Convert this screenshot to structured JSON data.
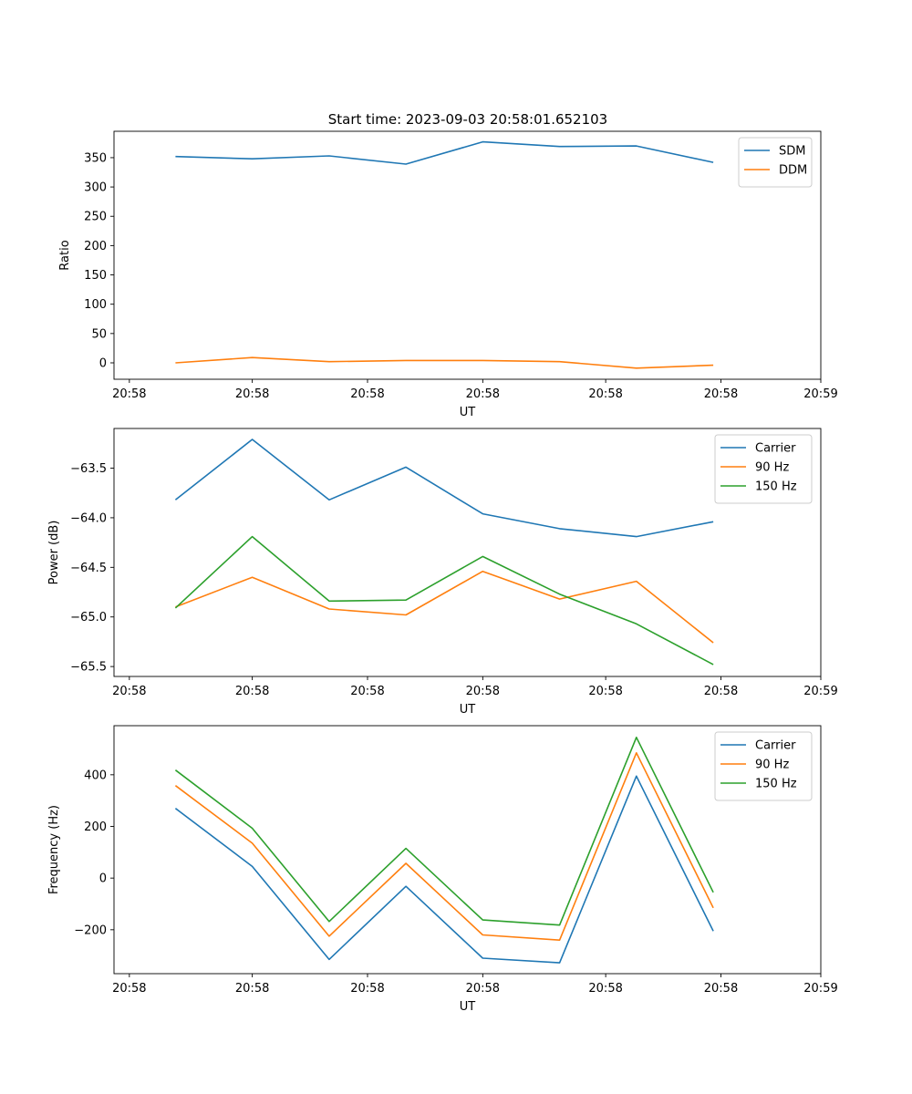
{
  "figure": {
    "title": "Start time: 2023-09-03 20:58:01.652103"
  },
  "colors": {
    "blue": "#1f77b4",
    "orange": "#ff7f0e",
    "green": "#2ca02c"
  },
  "chart_data": [
    {
      "type": "line",
      "title": "Start time: 2023-09-03 20:58:01.652103",
      "xlabel": "UT",
      "ylabel": "Ratio",
      "x": [
        1,
        2,
        3,
        4,
        5,
        6,
        7,
        8
      ],
      "xlim": [
        0.2,
        9.4
      ],
      "xticks": [
        0.4,
        2.0,
        3.5,
        5.0,
        6.6,
        8.1,
        9.4
      ],
      "xtick_labels": [
        "20:58",
        "20:58",
        "20:58",
        "20:58",
        "20:58",
        "20:58",
        "20:59"
      ],
      "ylim": [
        -28,
        395
      ],
      "yticks": [
        0,
        50,
        100,
        150,
        200,
        250,
        300,
        350
      ],
      "ytick_labels": [
        "0",
        "50",
        "100",
        "150",
        "200",
        "250",
        "300",
        "350"
      ],
      "legend": "top-right",
      "series": [
        {
          "name": "SDM",
          "color": "#1f77b4",
          "values": [
            352,
            348,
            353,
            339,
            377,
            369,
            370,
            342
          ]
        },
        {
          "name": "DDM",
          "color": "#ff7f0e",
          "values": [
            0,
            9,
            2,
            4,
            4,
            2,
            -9,
            -4
          ]
        }
      ]
    },
    {
      "type": "line",
      "title": "",
      "xlabel": "UT",
      "ylabel": "Power (dB)",
      "x": [
        1,
        2,
        3,
        4,
        5,
        6,
        7,
        8
      ],
      "xlim": [
        0.2,
        9.4
      ],
      "xticks": [
        0.4,
        2.0,
        3.5,
        5.0,
        6.6,
        8.1,
        9.4
      ],
      "xtick_labels": [
        "20:58",
        "20:58",
        "20:58",
        "20:58",
        "20:58",
        "20:58",
        "20:59"
      ],
      "ylim": [
        -65.6,
        -63.1
      ],
      "yticks": [
        -65.5,
        -65.0,
        -64.5,
        -64.0,
        -63.5
      ],
      "ytick_labels": [
        "−65.5",
        "−65.0",
        "−64.5",
        "−64.0",
        "−63.5"
      ],
      "legend": "top-right",
      "series": [
        {
          "name": "Carrier",
          "color": "#1f77b4",
          "values": [
            -63.82,
            -63.21,
            -63.82,
            -63.49,
            -63.96,
            -64.11,
            -64.19,
            -64.04
          ]
        },
        {
          "name": "90 Hz",
          "color": "#ff7f0e",
          "values": [
            -64.9,
            -64.6,
            -64.92,
            -64.98,
            -64.54,
            -64.82,
            -64.64,
            -65.26
          ]
        },
        {
          "name": "150 Hz",
          "color": "#2ca02c",
          "values": [
            -64.91,
            -64.19,
            -64.84,
            -64.83,
            -64.39,
            -64.77,
            -65.07,
            -65.48
          ]
        }
      ]
    },
    {
      "type": "line",
      "title": "",
      "xlabel": "UT",
      "ylabel": "Frequency (Hz)",
      "x": [
        1,
        2,
        3,
        4,
        5,
        6,
        7,
        8
      ],
      "xlim": [
        0.2,
        9.4
      ],
      "xticks": [
        0.4,
        2.0,
        3.5,
        5.0,
        6.6,
        8.1,
        9.4
      ],
      "xtick_labels": [
        "20:58",
        "20:58",
        "20:58",
        "20:58",
        "20:58",
        "20:58",
        "20:59"
      ],
      "ylim": [
        -370,
        590
      ],
      "yticks": [
        -200,
        0,
        200,
        400
      ],
      "ytick_labels": [
        "−200",
        "0",
        "200",
        "400"
      ],
      "legend": "top-right",
      "series": [
        {
          "name": "Carrier",
          "color": "#1f77b4",
          "values": [
            270,
            45,
            -315,
            -32,
            -310,
            -328,
            395,
            -205
          ]
        },
        {
          "name": "90 Hz",
          "color": "#ff7f0e",
          "values": [
            358,
            135,
            -225,
            57,
            -220,
            -240,
            485,
            -115
          ]
        },
        {
          "name": "150 Hz",
          "color": "#2ca02c",
          "values": [
            418,
            193,
            -168,
            115,
            -162,
            -182,
            545,
            -55
          ]
        }
      ]
    }
  ]
}
